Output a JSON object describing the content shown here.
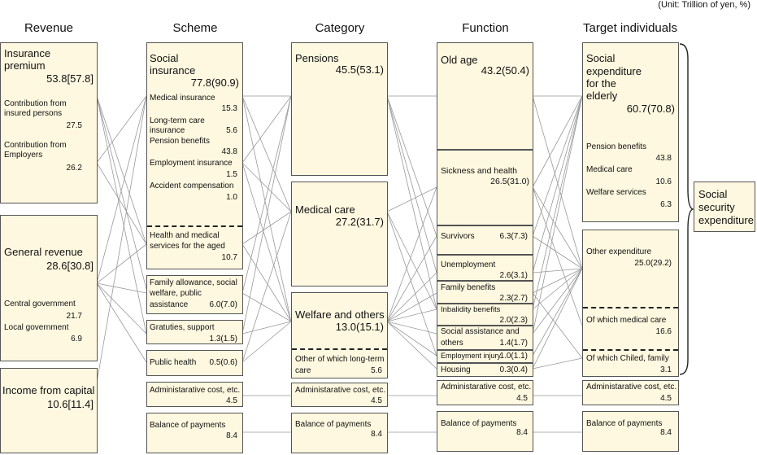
{
  "unit_note": "(Unit: Trillion of yen, %)",
  "headers": {
    "revenue": "Revenue",
    "scheme": "Scheme",
    "category": "Category",
    "function": "Function",
    "target": "Target individuals"
  },
  "revenue": {
    "insurance": {
      "title1": "Insurance",
      "title2": "premium",
      "value": "53.8[57.8]",
      "insured_1": "Contribution from",
      "insured_2": "insured persons",
      "insured_value": "27.5",
      "employers_1": "Contribution from",
      "employers_2": "Employers",
      "employers_value": "26.2"
    },
    "general": {
      "title": "General revenue",
      "value": "28.6[30.8]",
      "central": "Central government",
      "central_value": "21.7",
      "local": "Local government",
      "local_value": "6.9"
    },
    "capital": {
      "title": "Income from capital",
      "value": "10.6[11.4]"
    }
  },
  "scheme": {
    "social": {
      "title1": "Social",
      "title2": "insurance",
      "value": "77.8(90.9)",
      "medical": "Medical insurance",
      "medical_value": "15.3",
      "ltc_1": "Long-term care",
      "ltc_2": "insurance",
      "ltc_value": "5.6",
      "pension": "Pension benefits",
      "pension_value": "43.8",
      "employment": "Employment insurance",
      "employment_value": "1.5",
      "accident": "Accident compensation",
      "accident_value": "1.0",
      "aged_1": "Health and medical",
      "aged_2": "services for the aged",
      "aged_value": "10.7"
    },
    "family": {
      "l1": "Family allowance, social",
      "l2": "welfare, public",
      "l3": "assistance",
      "value": "6.0(7.0)"
    },
    "gratuities": {
      "label": "Gratuties, support",
      "value": "1.3(1.5)"
    },
    "public_health": {
      "label": "Public health",
      "value": "0.5(0.6)"
    },
    "admin": {
      "label": "Administarative cost, etc.",
      "value": "4.5"
    },
    "balance": {
      "label": "Balance of payments",
      "value": "8.4"
    }
  },
  "category": {
    "pensions": {
      "label": "Pensions",
      "value": "45.5(53.1)"
    },
    "medical": {
      "label": "Medical care",
      "value": "27.2(31.7)"
    },
    "welfare": {
      "label": "Welfare and others",
      "value": "13.0(15.1)",
      "ltc_1": "Other of which long-term",
      "ltc_2": "care",
      "ltc_value": "5.6"
    },
    "admin": {
      "label": "Administarative cost, etc.",
      "value": "4.5"
    },
    "balance": {
      "label": "Balance of payments",
      "value": "8.4"
    }
  },
  "function": {
    "old_age": {
      "label": "Old age",
      "value": "43.2(50.4)"
    },
    "sickness": {
      "label": "Sickness and health",
      "value": "26.5(31.0)"
    },
    "survivors": {
      "label": "Survivors",
      "value": "6.3(7.3)"
    },
    "unemployment": {
      "label": "Unemployment",
      "value": "2.6(3.1)"
    },
    "family": {
      "label": "Family benefits",
      "value": "2.3(2.7)"
    },
    "inability": {
      "label": "Inbalidity benefits",
      "value": "2.0(2.3)"
    },
    "social_assist": {
      "l1": "Social assistance and",
      "l2": "others",
      "value": "1.4(1.7)"
    },
    "injury": {
      "label": "Employment injury",
      "value": "1.0(1.1)"
    },
    "housing": {
      "label": "Housing",
      "value": "0.3(0.4)"
    },
    "admin": {
      "label": "Administarative cost, etc.",
      "value": "4.5"
    },
    "balance": {
      "label": "Balance of payments",
      "value": "8.4"
    }
  },
  "target": {
    "elderly": {
      "l1": "Social",
      "l2": "expenditure",
      "l3": "for the",
      "l4": "elderly",
      "value": "60.7(70.8)",
      "pension": "Pension benefits",
      "pension_value": "43.8",
      "medical": "Medical care",
      "medical_value": "10.6",
      "welfare": "Welfare services",
      "welfare_value": "6.3"
    },
    "other": {
      "label": "Other expenditure",
      "value": "25.0(29.2)",
      "medical": "Of which medical care",
      "medical_value": "16.6",
      "child": "Of which Chiled, family",
      "child_value": "3.1"
    },
    "admin": {
      "label": "Administarative cost, etc.",
      "value": "4.5"
    },
    "balance": {
      "label": "Balance of payments",
      "value": "8.4"
    }
  },
  "total": {
    "l1": "Social",
    "l2": "security",
    "l3": "expenditure"
  }
}
